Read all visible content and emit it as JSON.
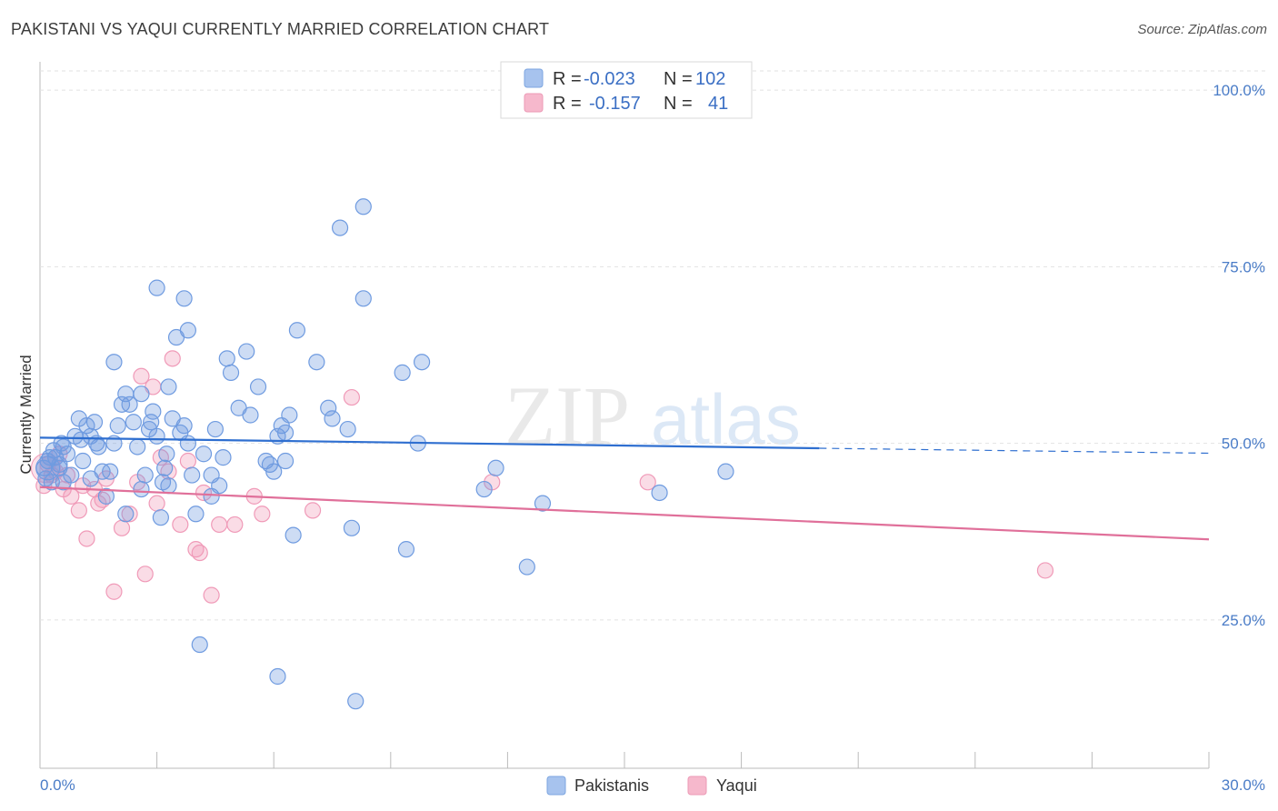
{
  "header": {
    "title": "PAKISTANI VS YAQUI CURRENTLY MARRIED CORRELATION CHART",
    "source": "Source: ZipAtlas.com"
  },
  "watermark": {
    "part1": "ZIP",
    "part2": "atlas"
  },
  "legend": {
    "rows": [
      {
        "r_label": "R =",
        "r_value": "-0.023",
        "n_label": "N =",
        "n_value": "102",
        "color": "#a7c3ee"
      },
      {
        "r_label": "R =",
        "r_value": "-0.157",
        "n_label": "N =",
        "n_value": "41",
        "color": "#f6b8cc"
      }
    ]
  },
  "bottom_legend": {
    "series1": "Pakistanis",
    "series2": "Yaqui"
  },
  "chart_data": {
    "type": "scatter",
    "title": "PAKISTANI VS YAQUI CURRENTLY MARRIED CORRELATION CHART",
    "xlabel": "",
    "ylabel": "Currently Married",
    "xlim": [
      0,
      30
    ],
    "ylim": [
      4,
      104
    ],
    "x_tick_labels": [
      "0.0%",
      "30.0%"
    ],
    "y_ticks": [
      25,
      50,
      75,
      100
    ],
    "y_tick_labels": [
      "25.0%",
      "50.0%",
      "75.0%",
      "100.0%"
    ],
    "grid": true,
    "colors": {
      "pakistanis": "#6f9be0",
      "yaqui": "#f09ab8",
      "pakistanis_line": "#2f6fd0",
      "yaqui_line": "#e0709a"
    },
    "series": [
      {
        "name": "Pakistanis",
        "trend": {
          "x0": 0,
          "y0": 50.8,
          "x1": 20.0,
          "y1": 49.3,
          "dash_to_x": 30,
          "dash_to_y": 48.6
        },
        "points": [
          [
            0.1,
            46.5
          ],
          [
            0.15,
            45.0
          ],
          [
            0.2,
            47.5
          ],
          [
            0.3,
            44.5
          ],
          [
            0.35,
            49.0
          ],
          [
            0.4,
            48.0
          ],
          [
            0.5,
            47.0
          ],
          [
            0.55,
            50.0
          ],
          [
            0.6,
            49.5
          ],
          [
            0.7,
            48.5
          ],
          [
            0.8,
            45.5
          ],
          [
            0.9,
            51.0
          ],
          [
            1.0,
            53.5
          ],
          [
            1.05,
            50.5
          ],
          [
            1.1,
            47.5
          ],
          [
            1.2,
            52.5
          ],
          [
            1.3,
            51.0
          ],
          [
            1.4,
            53.0
          ],
          [
            1.45,
            50.0
          ],
          [
            1.5,
            49.5
          ],
          [
            1.6,
            46.0
          ],
          [
            1.7,
            42.5
          ],
          [
            1.8,
            46.0
          ],
          [
            1.9,
            50.0
          ],
          [
            2.0,
            52.5
          ],
          [
            2.1,
            55.5
          ],
          [
            2.2,
            57.0
          ],
          [
            2.3,
            55.5
          ],
          [
            2.4,
            53.0
          ],
          [
            2.5,
            49.5
          ],
          [
            2.6,
            43.5
          ],
          [
            2.7,
            45.5
          ],
          [
            2.8,
            52.0
          ],
          [
            2.9,
            54.5
          ],
          [
            3.0,
            51.0
          ],
          [
            3.1,
            39.5
          ],
          [
            3.2,
            46.5
          ],
          [
            3.25,
            48.5
          ],
          [
            3.3,
            44.0
          ],
          [
            3.4,
            53.5
          ],
          [
            1.9,
            61.5
          ],
          [
            2.6,
            57.0
          ],
          [
            3.0,
            72.0
          ],
          [
            3.3,
            58.0
          ],
          [
            3.5,
            65.0
          ],
          [
            3.7,
            70.5
          ],
          [
            3.8,
            66.0
          ],
          [
            3.6,
            51.5
          ],
          [
            3.7,
            52.5
          ],
          [
            3.8,
            50.0
          ],
          [
            3.9,
            45.5
          ],
          [
            4.0,
            40.0
          ],
          [
            4.2,
            48.5
          ],
          [
            4.4,
            42.5
          ],
          [
            4.4,
            45.5
          ],
          [
            4.5,
            52.0
          ],
          [
            4.6,
            44.0
          ],
          [
            4.7,
            48.0
          ],
          [
            4.8,
            62.0
          ],
          [
            4.9,
            60.0
          ],
          [
            5.1,
            55.0
          ],
          [
            5.3,
            63.0
          ],
          [
            5.4,
            54.0
          ],
          [
            5.6,
            58.0
          ],
          [
            5.8,
            47.5
          ],
          [
            6.0,
            46.0
          ],
          [
            6.1,
            51.0
          ],
          [
            6.2,
            52.5
          ],
          [
            6.3,
            47.5
          ],
          [
            6.4,
            54.0
          ],
          [
            6.5,
            37.0
          ],
          [
            6.6,
            66.0
          ],
          [
            7.1,
            61.5
          ],
          [
            7.4,
            55.0
          ],
          [
            7.5,
            53.5
          ],
          [
            7.9,
            52.0
          ],
          [
            8.0,
            38.0
          ],
          [
            7.7,
            80.5
          ],
          [
            8.3,
            83.5
          ],
          [
            8.3,
            70.5
          ],
          [
            9.3,
            60.0
          ],
          [
            9.4,
            35.0
          ],
          [
            9.7,
            50.0
          ],
          [
            9.8,
            61.5
          ],
          [
            11.4,
            43.5
          ],
          [
            11.7,
            46.5
          ],
          [
            12.5,
            32.5
          ],
          [
            12.9,
            41.5
          ],
          [
            15.9,
            43.0
          ],
          [
            17.6,
            46.0
          ],
          [
            4.1,
            21.5
          ],
          [
            6.1,
            17.0
          ],
          [
            8.1,
            13.5
          ],
          [
            0.5,
            46.5
          ],
          [
            0.25,
            48.0
          ],
          [
            0.6,
            44.5
          ],
          [
            1.3,
            45.0
          ],
          [
            2.2,
            40.0
          ],
          [
            2.85,
            53.0
          ],
          [
            3.15,
            44.5
          ],
          [
            5.9,
            47.0
          ],
          [
            6.3,
            51.5
          ]
        ]
      },
      {
        "name": "Yaqui",
        "trend": {
          "x0": 0,
          "y0": 43.8,
          "x1": 30,
          "y1": 36.4
        },
        "points": [
          [
            0.1,
            44.0
          ],
          [
            0.2,
            47.0
          ],
          [
            0.3,
            45.5
          ],
          [
            0.4,
            46.0
          ],
          [
            0.5,
            48.5
          ],
          [
            0.6,
            43.5
          ],
          [
            0.7,
            45.5
          ],
          [
            0.8,
            42.5
          ],
          [
            1.0,
            40.5
          ],
          [
            1.1,
            44.0
          ],
          [
            1.2,
            36.5
          ],
          [
            1.4,
            43.5
          ],
          [
            1.5,
            41.5
          ],
          [
            1.6,
            42.0
          ],
          [
            1.7,
            45.0
          ],
          [
            1.9,
            29.0
          ],
          [
            2.1,
            38.0
          ],
          [
            2.3,
            40.0
          ],
          [
            2.5,
            44.5
          ],
          [
            2.6,
            59.5
          ],
          [
            2.7,
            31.5
          ],
          [
            2.9,
            58.0
          ],
          [
            3.0,
            41.5
          ],
          [
            3.1,
            48.0
          ],
          [
            3.3,
            46.0
          ],
          [
            3.4,
            62.0
          ],
          [
            3.6,
            38.5
          ],
          [
            3.8,
            47.5
          ],
          [
            4.0,
            35.0
          ],
          [
            4.1,
            34.5
          ],
          [
            4.2,
            43.0
          ],
          [
            4.4,
            28.5
          ],
          [
            4.6,
            38.5
          ],
          [
            5.0,
            38.5
          ],
          [
            5.5,
            42.5
          ],
          [
            5.7,
            40.0
          ],
          [
            7.0,
            40.5
          ],
          [
            8.0,
            56.5
          ],
          [
            11.6,
            44.5
          ],
          [
            15.6,
            44.5
          ],
          [
            25.8,
            32.0
          ]
        ]
      }
    ]
  }
}
